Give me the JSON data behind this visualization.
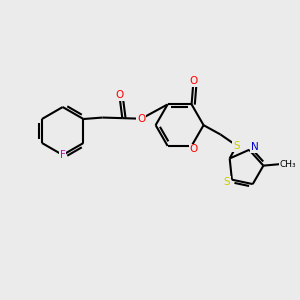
{
  "background_color": "#ebebeb",
  "atom_colors": {
    "O": "#ff0000",
    "N": "#0000cc",
    "S": "#cccc00",
    "F": "#cc00cc"
  },
  "bond_color": "#000000",
  "figsize": [
    3.0,
    3.0
  ],
  "dpi": 100
}
